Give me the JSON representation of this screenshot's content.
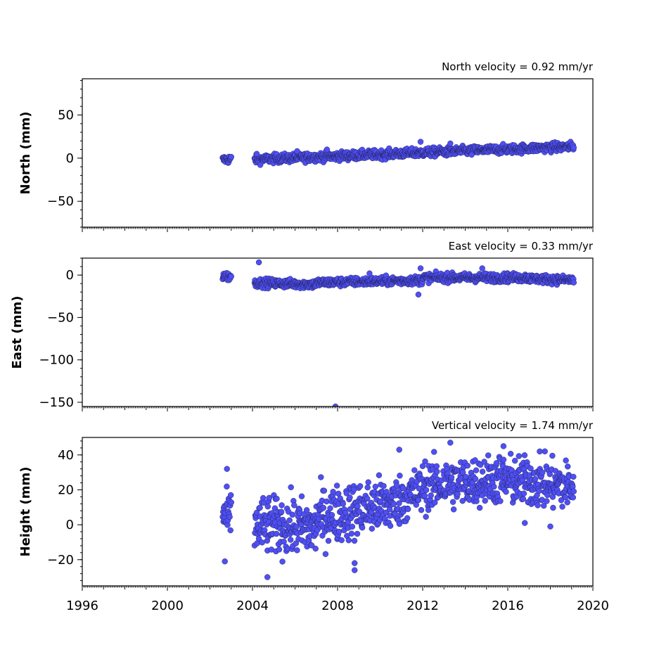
{
  "chart_data": [
    {
      "type": "scatter",
      "title": "North velocity = 0.92 mm/yr",
      "ylabel": "North (mm)",
      "xlim": [
        1996,
        2020
      ],
      "ylim": [
        -80,
        92
      ],
      "yticks": [
        -50,
        0,
        50
      ],
      "yticklabels": [
        "−50",
        "0",
        "50"
      ],
      "show_xticklabels": false,
      "marker_color": "#4f4ff5",
      "edge_color": "#1a1a40",
      "series": [
        {
          "segments": [
            {
              "x": [
                2002.6,
                2003.0
              ],
              "y": [
                -2,
                -1
              ],
              "spread": 2.5
            },
            {
              "x": [
                2004.1,
                2019.1
              ],
              "y": [
                -1.5,
                13.5
              ],
              "spread": 2.5
            }
          ],
          "outliers": [
            {
              "x": 2004.2,
              "y": 5
            },
            {
              "x": 2006.1,
              "y": 8
            },
            {
              "x": 2007.5,
              "y": 10
            },
            {
              "x": 2011.9,
              "y": 19
            },
            {
              "x": 2013.3,
              "y": 17
            },
            {
              "x": 2014.3,
              "y": 4
            }
          ]
        }
      ]
    },
    {
      "type": "scatter",
      "title": "East velocity = 0.33 mm/yr",
      "ylabel": "East (mm)",
      "xlim": [
        1996,
        2020
      ],
      "ylim": [
        -155,
        20
      ],
      "yticks": [
        -150,
        -100,
        -50,
        0
      ],
      "yticklabels": [
        "−150",
        "−100",
        "−50",
        "0"
      ],
      "show_xticklabels": false,
      "marker_color": "#4f4ff5",
      "edge_color": "#1a1a40",
      "series": [
        {
          "segments": [
            {
              "x": [
                2002.6,
                2003.0
              ],
              "y": [
                -1,
                -2
              ],
              "spread": 2.5
            },
            {
              "x": [
                2004.1,
                2007.0
              ],
              "y": [
                -9,
                -11
              ],
              "spread": 2.5
            },
            {
              "x": [
                2007.0,
                2012.0
              ],
              "y": [
                -9,
                -6
              ],
              "spread": 2.5
            },
            {
              "x": [
                2012.0,
                2017.0
              ],
              "y": [
                -3,
                -3
              ],
              "spread": 2.5
            },
            {
              "x": [
                2017.0,
                2019.1
              ],
              "y": [
                -4,
                -6
              ],
              "spread": 2.5
            }
          ],
          "outliers": [
            {
              "x": 2004.3,
              "y": 15
            },
            {
              "x": 2007.9,
              "y": -155
            },
            {
              "x": 2011.8,
              "y": -23
            },
            {
              "x": 2011.9,
              "y": 8
            },
            {
              "x": 2014.8,
              "y": 8
            },
            {
              "x": 2009.5,
              "y": 2
            }
          ]
        }
      ]
    },
    {
      "type": "scatter",
      "title": "Vertical velocity = 1.74 mm/yr",
      "ylabel": "Height (mm)",
      "xlim": [
        1996,
        2020
      ],
      "ylim": [
        -35,
        50
      ],
      "yticks": [
        -20,
        0,
        20,
        40
      ],
      "yticklabels": [
        "−20",
        "0",
        "20",
        "40"
      ],
      "xticks": [
        1996,
        2000,
        2004,
        2008,
        2012,
        2016,
        2020
      ],
      "xticklabels": [
        "1996",
        "2000",
        "2004",
        "2008",
        "2012",
        "2016",
        "2020"
      ],
      "show_xticklabels": true,
      "marker_color": "#4f4ff5",
      "edge_color": "#1a1a40",
      "series": [
        {
          "segments": [
            {
              "x": [
                2002.6,
                2003.0
              ],
              "y": [
                5,
                4
              ],
              "spread": 7
            },
            {
              "x": [
                2004.1,
                2007.0
              ],
              "y": [
                0,
                -2
              ],
              "spread": 8
            },
            {
              "x": [
                2007.0,
                2010.5
              ],
              "y": [
                4,
                12
              ],
              "spread": 8
            },
            {
              "x": [
                2010.5,
                2012.0
              ],
              "y": [
                12,
                20
              ],
              "spread": 7
            },
            {
              "x": [
                2012.0,
                2015.5
              ],
              "y": [
                22,
                26
              ],
              "spread": 7
            },
            {
              "x": [
                2015.5,
                2019.1
              ],
              "y": [
                26,
                22
              ],
              "spread": 7
            }
          ],
          "outliers": [
            {
              "x": 2002.8,
              "y": 32
            },
            {
              "x": 2002.7,
              "y": -21
            },
            {
              "x": 2004.7,
              "y": -30
            },
            {
              "x": 2008.8,
              "y": -26
            },
            {
              "x": 2008.8,
              "y": -22
            },
            {
              "x": 2010.9,
              "y": 43
            },
            {
              "x": 2013.3,
              "y": 47
            },
            {
              "x": 2015.8,
              "y": 45
            },
            {
              "x": 2017.5,
              "y": 42
            },
            {
              "x": 2018.0,
              "y": -1
            },
            {
              "x": 2016.8,
              "y": 1
            }
          ]
        }
      ]
    }
  ]
}
